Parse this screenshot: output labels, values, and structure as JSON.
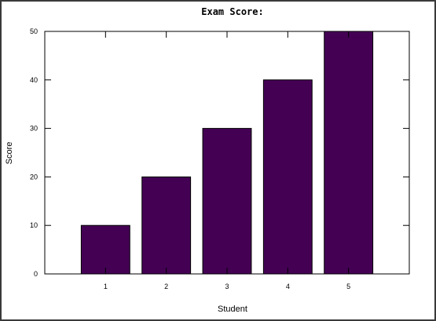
{
  "chart_data": {
    "type": "bar",
    "title": "Exam Score:",
    "xlabel": "Student",
    "ylabel": "Score",
    "categories": [
      "1",
      "2",
      "3",
      "4",
      "5"
    ],
    "values": [
      10,
      20,
      30,
      40,
      50
    ],
    "ylim": [
      0,
      50
    ],
    "yticks": [
      0,
      10,
      20,
      30,
      40,
      50
    ],
    "xlim": [
      0,
      6
    ],
    "bar_color": "#440154",
    "grid": false,
    "legend": "none"
  }
}
